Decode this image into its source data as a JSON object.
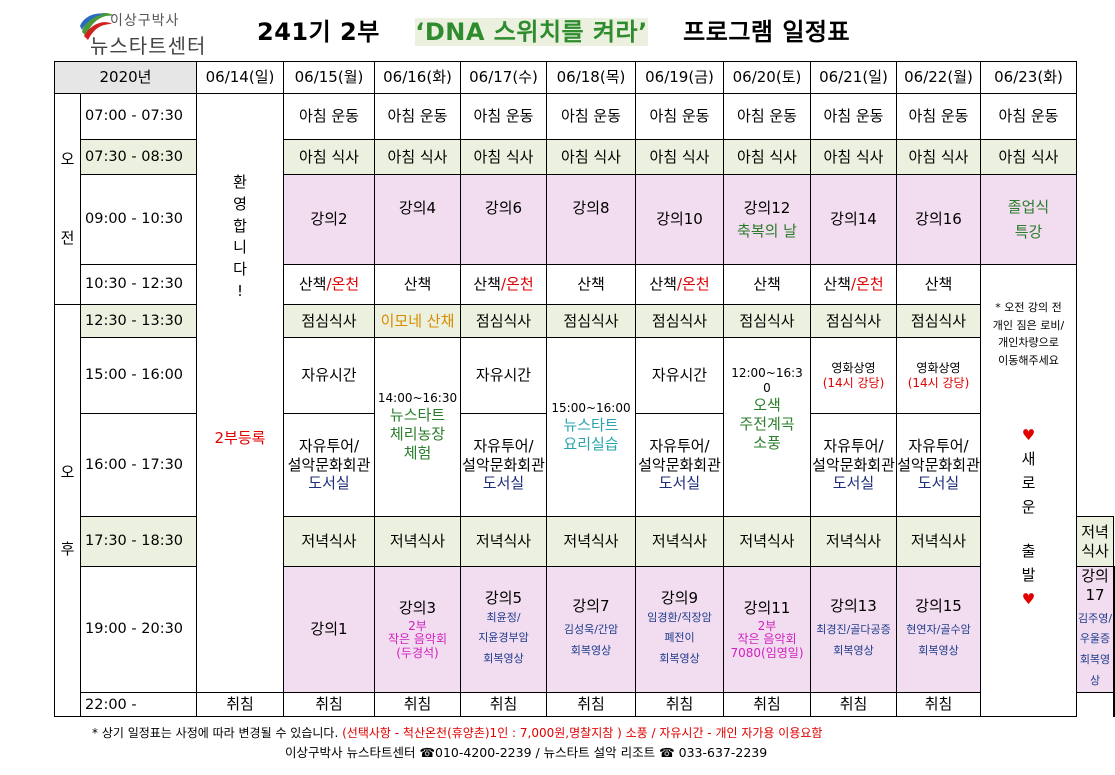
{
  "logo": {
    "line1": "이상구박사",
    "line2": "뉴스타트센터"
  },
  "title": {
    "part1": "241기 2부",
    "part2": "‘DNA 스위치를 켜라’",
    "part3": "프로그램 일정표"
  },
  "header": {
    "year": "2020년",
    "dates": [
      "06/14(일)",
      "06/15(월)",
      "06/16(화)",
      "06/17(수)",
      "06/18(목)",
      "06/19(금)",
      "06/20(토)",
      "06/21(일)",
      "06/22(월)",
      "06/23(화)"
    ]
  },
  "ampm": {
    "am1": "오",
    "am2": "전",
    "pm1": "오",
    "pm2": "후"
  },
  "times": {
    "t0700": "07:00 - 07:30",
    "t0730": "07:30 - 08:30",
    "t0900": "09:00 - 10:30",
    "t1030": "10:30 - 12:30",
    "t1230": "12:30 - 13:30",
    "t1500": "15:00 - 16:00",
    "t1600": "16:00 - 17:30",
    "t1730": "17:30 - 18:30",
    "t1900": "19:00 - 20:30",
    "t2200": "22:00 -"
  },
  "cells": {
    "exercise": "아침 운동",
    "breakfast": "아침 식사",
    "welcome": [
      "환",
      "영",
      "합",
      "니",
      "다",
      "!"
    ],
    "reg": "2부등록",
    "lectures_am": [
      "강의2",
      "강의4",
      "강의6",
      "강의8",
      "강의10",
      "강의12",
      "강의14",
      "강의16"
    ],
    "blessing": "축복의 날",
    "graduation": [
      "졸업식",
      "특강"
    ],
    "walk": "산책",
    "slash_spa": "/온천",
    "lunch": "점심식사",
    "lunch_mom": "이모네 산채",
    "notice": [
      "* 오전 강의 전",
      "개인 짐은 로비/",
      "개인차량으로",
      "이동해주세요"
    ],
    "free": "자유시간",
    "tour": [
      "자유투어/",
      "설악문화회관",
      "도서실"
    ],
    "farm": [
      "14:00~16:30",
      "뉴스타트",
      "체리농장",
      "체험"
    ],
    "cook": [
      "15:00~16:00",
      "뉴스타트",
      "요리실습"
    ],
    "valley": [
      "12:00~16:3",
      "0",
      "오색",
      "주전계곡",
      "소풍"
    ],
    "movie": [
      "영화상영",
      "(14시 강당)"
    ],
    "newstart": [
      "♥",
      "새",
      "로",
      "운",
      "출",
      "발",
      "♥"
    ],
    "dinner": "저녁식사",
    "lecture1": "강의1",
    "l3": {
      "title": "강의3",
      "sub": [
        "2부",
        "작은 음악회",
        "(두경석)"
      ]
    },
    "l5": {
      "title": "강의5",
      "sub": [
        "최윤정/",
        "지윤경부암",
        "회복영상"
      ]
    },
    "l7": {
      "title": "강의7",
      "sub": [
        "김성욱/간암",
        "회복영상"
      ]
    },
    "l9": {
      "title": "강의9",
      "sub": [
        "임경환/직장암",
        "폐전이",
        "회복영상"
      ]
    },
    "l11": {
      "title": "강의11",
      "sub": [
        "2부",
        "작은 음악회",
        "7080(임영일)"
      ]
    },
    "l13": {
      "title": "강의13",
      "sub": [
        "최경진/골다공증",
        "회복영상"
      ]
    },
    "l15": {
      "title": "강의15",
      "sub": [
        "현연자/골수암",
        "회복영상"
      ]
    },
    "l17": {
      "title": "강의17",
      "sub": [
        "김주영/우울증",
        "회복영상"
      ]
    },
    "sleep": "취침"
  },
  "footer": {
    "line1_a": "* 상기 일정표는 사정에 따라 변경될 수 있습니다.",
    "line1_b": "(선택사항 - 척산온천(휴양촌)1인 : 7,000원,명찰지참 )  소풍 / 자유시간 - 개인 자가용 이용요함",
    "line2": "이상구박사 뉴스타트센터 ☎010-4200-2239 /  뉴스타트 설악 리조트 ☎ 033-637-2239"
  },
  "colors": {
    "green_band": "#ebf1de",
    "pink_band": "#f2dcef",
    "red": "#e00000",
    "green_text": "#2a7d2a"
  }
}
